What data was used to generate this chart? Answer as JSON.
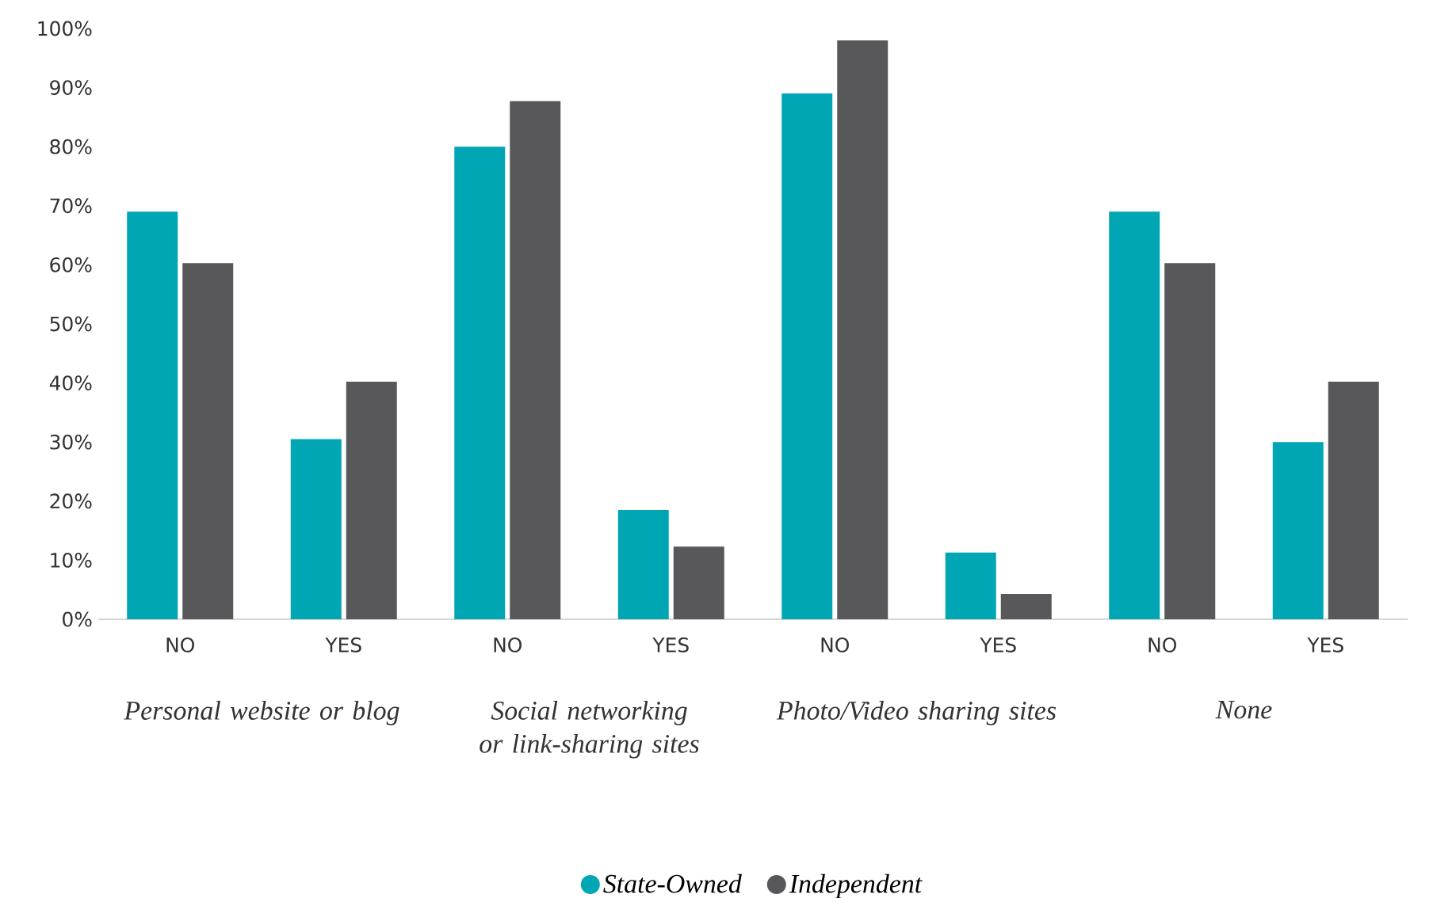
{
  "chart_data": {
    "type": "bar",
    "categories": [
      "NO",
      "YES",
      "NO",
      "YES",
      "NO",
      "YES",
      "NO",
      "YES"
    ],
    "series": [
      {
        "name": "State-Owned",
        "color": "#00a6b4",
        "values": [
          69,
          30.5,
          80,
          18.5,
          89,
          11.3,
          69,
          30
        ]
      },
      {
        "name": "Independent",
        "color": "#58585a",
        "values": [
          60.3,
          40.2,
          87.7,
          12.3,
          98,
          4.3,
          60.3,
          40.2
        ]
      }
    ],
    "ylim": [
      0,
      100
    ],
    "yticks": [
      {
        "value": 0,
        "label": "0%"
      },
      {
        "value": 10,
        "label": "10%"
      },
      {
        "value": 20,
        "label": "20%"
      },
      {
        "value": 30,
        "label": "30%"
      },
      {
        "value": 40,
        "label": "40%"
      },
      {
        "value": 50,
        "label": "50%"
      },
      {
        "value": 60,
        "label": "60%"
      },
      {
        "value": 70,
        "label": "70%"
      },
      {
        "value": 80,
        "label": "80%"
      },
      {
        "value": 90,
        "label": "90%"
      },
      {
        "value": 100,
        "label": "100%"
      }
    ],
    "annotations": [
      "Personal website or blog",
      "Social networking or link-sharing sites",
      "Photo/Video sharing sites",
      "None"
    ],
    "legend": "bottom",
    "grid": false,
    "marker": "circle"
  }
}
